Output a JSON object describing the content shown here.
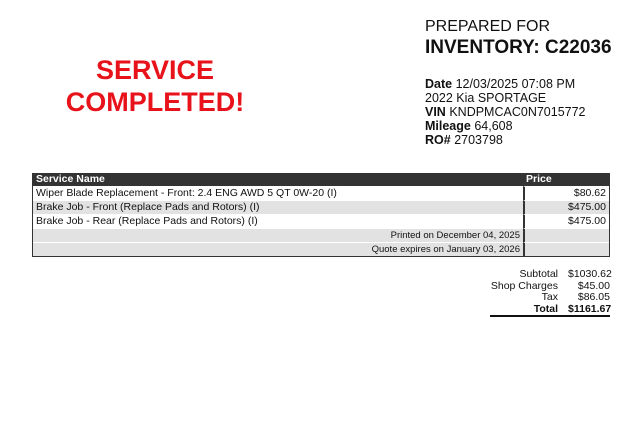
{
  "status_banner": "SERVICE COMPLETED!",
  "colors": {
    "status": "#e8121b",
    "header_bg": "#333333",
    "alt_row": "#e2e2e2"
  },
  "prepared_for_label": "PREPARED FOR",
  "customer": "INVENTORY: C22036",
  "info": {
    "date_label": "Date",
    "date": "12/03/2025 07:08 PM",
    "vehicle": "2022 Kia SPORTAGE",
    "vin_label": "VIN",
    "vin": "KNDPMCAC0N7015772",
    "mileage_label": "Mileage",
    "mileage": "64,608",
    "ro_label": "RO#",
    "ro": "2703798"
  },
  "table": {
    "headers": [
      "Service Name",
      "Price"
    ],
    "rows": [
      {
        "name": "Wiper Blade Replacement - Front: 2.4 ENG AWD 5 QT 0W-20 (I)",
        "price": "$80.62"
      },
      {
        "name": "Brake Job - Front (Replace Pads and Rotors) (I)",
        "price": "$475.00"
      },
      {
        "name": "Brake Job - Rear (Replace Pads and Rotors) (I)",
        "price": "$475.00"
      }
    ],
    "printed": "Printed on December 04, 2025",
    "expires": "Quote expires on January 03, 2026"
  },
  "totals": {
    "subtotal_label": "Subtotal",
    "subtotal": "$1030.62",
    "shop_label": "Shop Charges",
    "shop": "$45.00",
    "tax_label": "Tax",
    "tax": "$86.05",
    "total_label": "Total",
    "total": "$1161.67"
  }
}
